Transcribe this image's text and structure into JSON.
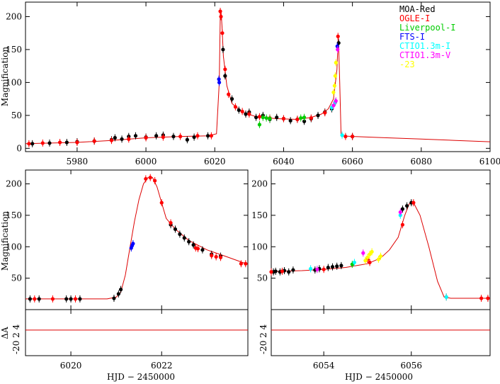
{
  "chart_data": [
    {
      "id": "top",
      "type": "scatter",
      "ylabel": "Magnification",
      "xlim": [
        5965,
        6100
      ],
      "ylim": [
        -5,
        222
      ],
      "xticks": [
        5980,
        6000,
        6020,
        6040,
        6060,
        6080,
        6100
      ],
      "yticks": [
        0,
        50,
        100,
        150,
        200
      ],
      "legend": {
        "placement": "top-right",
        "entries": [
          {
            "label": "MOA-Red",
            "color": "#000000"
          },
          {
            "label": "OGLE-I",
            "color": "#ff0000"
          },
          {
            "label": "Liverpool-I",
            "color": "#00cc00"
          },
          {
            "label": "FTS-I",
            "color": "#0000ff"
          },
          {
            "label": "CTIO1.3m-I",
            "color": "#00ffff"
          },
          {
            "label": "CTIO1.3m-V",
            "color": "#ff00ff"
          },
          {
            "label": "-23",
            "color": "#ffff00"
          }
        ]
      },
      "model": [
        [
          5965,
          7
        ],
        [
          5980,
          9
        ],
        [
          5990,
          12
        ],
        [
          6000,
          16
        ],
        [
          6010,
          18
        ],
        [
          6018,
          19
        ],
        [
          6020.5,
          22
        ],
        [
          6021.3,
          100
        ],
        [
          6021.6,
          200
        ],
        [
          6021.8,
          210
        ],
        [
          6022.1,
          185
        ],
        [
          6022.5,
          140
        ],
        [
          6023.5,
          95
        ],
        [
          6025,
          68
        ],
        [
          6028,
          55
        ],
        [
          6032,
          48
        ],
        [
          6038,
          45
        ],
        [
          6044,
          44
        ],
        [
          6048,
          47
        ],
        [
          6051,
          52
        ],
        [
          6053,
          60
        ],
        [
          6054.5,
          75
        ],
        [
          6055.5,
          120
        ],
        [
          6055.9,
          172
        ],
        [
          6056.3,
          100
        ],
        [
          6056.7,
          20
        ],
        [
          6057,
          19
        ],
        [
          6060,
          18
        ],
        [
          6070,
          16
        ],
        [
          6080,
          14
        ],
        [
          6090,
          12
        ],
        [
          6100,
          10
        ]
      ],
      "series": [
        {
          "name": "MOA-Red",
          "color": "#000000",
          "points": [
            [
              5967,
              7
            ],
            [
              5972,
              8
            ],
            [
              5977,
              9
            ],
            [
              5980,
              10
            ],
            [
              5985,
              11
            ],
            [
              5990,
              13
            ],
            [
              5991,
              16
            ],
            [
              5993,
              14
            ],
            [
              5995,
              18
            ],
            [
              5997,
              19
            ],
            [
              6000,
              17
            ],
            [
              6003,
              19
            ],
            [
              6005,
              20
            ],
            [
              6008,
              18
            ],
            [
              6012,
              13
            ],
            [
              6014,
              17
            ],
            [
              6018,
              19
            ],
            [
              6022.4,
              150
            ],
            [
              6023,
              110
            ],
            [
              6025,
              75
            ],
            [
              6027,
              58
            ],
            [
              6029,
              52
            ],
            [
              6030,
              55
            ],
            [
              6032,
              47
            ],
            [
              6034,
              50
            ],
            [
              6036,
              44
            ],
            [
              6038,
              47
            ],
            [
              6040,
              45
            ],
            [
              6042,
              42
            ],
            [
              6044,
              44
            ],
            [
              6046,
              41
            ],
            [
              6048,
              45
            ],
            [
              6050,
              50
            ],
            [
              6052,
              55
            ],
            [
              6054,
              60
            ],
            [
              6055,
              70
            ],
            [
              6056,
              160
            ],
            [
              6060,
              18
            ]
          ]
        },
        {
          "name": "OGLE-I",
          "color": "#ff0000",
          "points": [
            [
              5966,
              7
            ],
            [
              5970,
              8
            ],
            [
              5975,
              9
            ],
            [
              5980,
              9
            ],
            [
              5985,
              11
            ],
            [
              5990,
              12
            ],
            [
              5995,
              14
            ],
            [
              6000,
              16
            ],
            [
              6005,
              17
            ],
            [
              6010,
              18
            ],
            [
              6015,
              19
            ],
            [
              6019,
              19
            ],
            [
              6021.6,
              208
            ],
            [
              6021.8,
              200
            ],
            [
              6022.2,
              175
            ],
            [
              6023,
              120
            ],
            [
              6024,
              82
            ],
            [
              6026,
              63
            ],
            [
              6028,
              56
            ],
            [
              6030,
              52
            ],
            [
              6033,
              48
            ],
            [
              6036,
              46
            ],
            [
              6040,
              45
            ],
            [
              6044,
              44
            ],
            [
              6048,
              46
            ],
            [
              6052,
              54
            ],
            [
              6055.8,
              170
            ],
            [
              6058,
              18
            ],
            [
              6060,
              18
            ]
          ]
        },
        {
          "name": "Liverpool-I",
          "color": "#00cc00",
          "points": [
            [
              6033,
              36
            ],
            [
              6034,
              47
            ],
            [
              6035,
              46
            ],
            [
              6036,
              45
            ],
            [
              6045,
              46
            ],
            [
              6046,
              47
            ]
          ]
        },
        {
          "name": "FTS-I",
          "color": "#0000ff",
          "points": [
            [
              6021.2,
              105
            ],
            [
              6021.3,
              100
            ],
            [
              6055.6,
              155
            ]
          ]
        },
        {
          "name": "CTIO1.3m-I",
          "color": "#00ffff",
          "points": [
            [
              6054,
              62
            ],
            [
              6055,
              70
            ],
            [
              6057,
              20
            ]
          ]
        },
        {
          "name": "CTIO1.3m-V",
          "color": "#ff00ff",
          "points": [
            [
              6054.5,
              65
            ],
            [
              6055.2,
              72
            ],
            [
              6055.7,
              150
            ]
          ]
        },
        {
          "name": "-23",
          "color": "#ffff00",
          "points": [
            [
              6054.5,
              85
            ],
            [
              6054.8,
              95
            ],
            [
              6055,
              110
            ],
            [
              6055.2,
              130
            ]
          ]
        }
      ]
    },
    {
      "id": "bottom-left",
      "type": "scatter",
      "ylabel": "Magnification",
      "xlim": [
        6019,
        6023.9
      ],
      "ylim": [
        0,
        222
      ],
      "xticks": [
        6020,
        6022
      ],
      "yticks": [
        50,
        100,
        150,
        200
      ],
      "model": [
        [
          6019,
          17
        ],
        [
          6020,
          17
        ],
        [
          6020.8,
          17
        ],
        [
          6021,
          20
        ],
        [
          6021.1,
          28
        ],
        [
          6021.2,
          55
        ],
        [
          6021.3,
          98
        ],
        [
          6021.4,
          140
        ],
        [
          6021.5,
          175
        ],
        [
          6021.6,
          200
        ],
        [
          6021.7,
          210
        ],
        [
          6021.8,
          210
        ],
        [
          6021.9,
          195
        ],
        [
          6022,
          170
        ],
        [
          6022.1,
          145
        ],
        [
          6022.3,
          128
        ],
        [
          6022.6,
          110
        ],
        [
          6023,
          95
        ],
        [
          6023.4,
          85
        ],
        [
          6023.9,
          72
        ]
      ],
      "series": [
        {
          "name": "MOA-Red",
          "color": "#000000",
          "points": [
            [
              6019.1,
              17
            ],
            [
              6019.3,
              17
            ],
            [
              6019.9,
              17
            ],
            [
              6020,
              17
            ],
            [
              6020.2,
              17
            ],
            [
              6020.95,
              18
            ],
            [
              6021.05,
              25
            ],
            [
              6021.1,
              32
            ],
            [
              6022.2,
              135
            ],
            [
              6022.3,
              128
            ],
            [
              6022.4,
              120
            ],
            [
              6022.5,
              114
            ],
            [
              6022.6,
              108
            ],
            [
              6022.7,
              103
            ],
            [
              6022.9,
              95
            ],
            [
              6023.1,
              88
            ],
            [
              6023.3,
              85
            ]
          ]
        },
        {
          "name": "OGLE-I",
          "color": "#ff0000",
          "points": [
            [
              6019.2,
              17
            ],
            [
              6019.6,
              17
            ],
            [
              6020.1,
              17
            ],
            [
              6021.65,
              208
            ],
            [
              6021.75,
              210
            ],
            [
              6021.85,
              205
            ],
            [
              6022,
              170
            ],
            [
              6022.2,
              138
            ],
            [
              6022.75,
              98
            ],
            [
              6022.8,
              97
            ],
            [
              6023.1,
              86
            ],
            [
              6023.2,
              84
            ],
            [
              6023.3,
              83
            ],
            [
              6023.75,
              73
            ],
            [
              6023.85,
              73
            ]
          ]
        },
        {
          "name": "FTS-I",
          "color": "#0000ff",
          "points": [
            [
              6021.33,
              98
            ],
            [
              6021.35,
              102
            ],
            [
              6021.37,
              105
            ]
          ]
        }
      ]
    },
    {
      "id": "bottom-left-residuals",
      "type": "scatter",
      "ylabel": "ΔA",
      "xlim": [
        6019,
        6023.9
      ],
      "ylim": [
        -10,
        8
      ],
      "xticks": [
        6020,
        6022
      ],
      "xtick_labels": [
        "6020",
        "6022"
      ],
      "yticks_label": "-20 2 4",
      "xlabel": "HJD − 2450000"
    },
    {
      "id": "bottom-right",
      "type": "scatter",
      "xlim": [
        6052.8,
        6057.8
      ],
      "ylim": [
        0,
        222
      ],
      "xticks": [
        6054,
        6056
      ],
      "yticks": [
        50,
        100,
        150,
        200
      ],
      "model": [
        [
          6052.8,
          60
        ],
        [
          6053,
          61
        ],
        [
          6053.5,
          62
        ],
        [
          6054,
          64
        ],
        [
          6054.5,
          67
        ],
        [
          6055,
          73
        ],
        [
          6055.3,
          82
        ],
        [
          6055.5,
          95
        ],
        [
          6055.7,
          115
        ],
        [
          6055.85,
          150
        ],
        [
          6055.95,
          168
        ],
        [
          6056.05,
          170
        ],
        [
          6056.2,
          150
        ],
        [
          6056.4,
          100
        ],
        [
          6056.6,
          45
        ],
        [
          6056.75,
          20
        ],
        [
          6056.9,
          18
        ],
        [
          6057.8,
          18
        ]
      ],
      "series": [
        {
          "name": "MOA-Red",
          "color": "#000000",
          "points": [
            [
              6052.85,
              60
            ],
            [
              6052.9,
              61
            ],
            [
              6053,
              60
            ],
            [
              6053.1,
              62
            ],
            [
              6053.2,
              60
            ],
            [
              6053.3,
              63
            ],
            [
              6053.8,
              63
            ],
            [
              6053.9,
              65
            ],
            [
              6054.1,
              67
            ],
            [
              6054.2,
              68
            ],
            [
              6054.3,
              69
            ],
            [
              6054.4,
              70
            ],
            [
              6055.8,
              160
            ],
            [
              6055.9,
              165
            ],
            [
              6056,
              170
            ]
          ]
        },
        {
          "name": "OGLE-I",
          "color": "#ff0000",
          "points": [
            [
              6052.8,
              60
            ],
            [
              6053.05,
              61
            ],
            [
              6054,
              64
            ],
            [
              6055,
              80
            ],
            [
              6055.05,
              75
            ],
            [
              6055.8,
              135
            ],
            [
              6056.05,
              170
            ],
            [
              6056.8,
              20
            ],
            [
              6057.6,
              18
            ],
            [
              6057.75,
              18
            ]
          ]
        },
        {
          "name": "Liverpool-I",
          "color": "#00cc00",
          "points": [
            [
              6054.65,
              72
            ]
          ]
        },
        {
          "name": "CTIO1.3m-I",
          "color": "#00ffff",
          "points": [
            [
              6053.7,
              65
            ],
            [
              6054.7,
              75
            ],
            [
              6055.75,
              150
            ],
            [
              6056.8,
              20
            ]
          ]
        },
        {
          "name": "CTIO1.3m-V",
          "color": "#ff00ff",
          "points": [
            [
              6053.85,
              64
            ],
            [
              6054.9,
              90
            ],
            [
              6055.75,
              155
            ]
          ]
        },
        {
          "name": "-23",
          "color": "#ffff00",
          "points": [
            [
              6054.95,
              78
            ],
            [
              6055,
              83
            ],
            [
              6055.05,
              88
            ],
            [
              6055.1,
              92
            ],
            [
              6055.25,
              80
            ],
            [
              6055.3,
              85
            ]
          ]
        }
      ]
    },
    {
      "id": "bottom-right-residuals",
      "type": "scatter",
      "xlim": [
        6052.8,
        6057.8
      ],
      "ylim": [
        -10,
        8
      ],
      "xticks": [
        6054,
        6056
      ],
      "xtick_labels": [
        "6054",
        "6056"
      ],
      "yticks_label": "-20 2 4",
      "xlabel": "HJD − 2450000"
    }
  ],
  "labels": {
    "ylabel_top": "Magnification",
    "ylabel_bottom": "Magnification",
    "residual_ylabel": "ΔA",
    "residual_yticks": "-20 2 4",
    "xlabel_left": "HJD − 2450000",
    "xlabel_right": "HJD − 2450000"
  }
}
